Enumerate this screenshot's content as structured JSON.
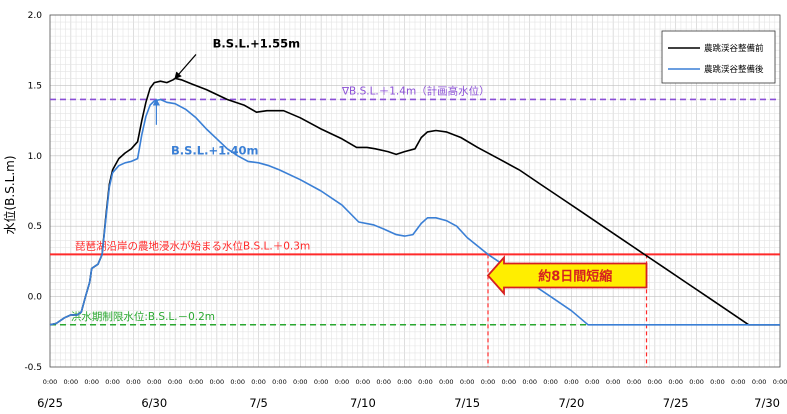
{
  "chart_data": {
    "type": "line",
    "ylabel": "水位(B.S.L.m)",
    "ylim": [
      -0.5,
      2.0
    ],
    "yticks": [
      "-0.5",
      "0.0",
      "0.5",
      "1.0",
      "1.5",
      "2.0"
    ],
    "ytick_values": [
      -0.5,
      0.0,
      0.5,
      1.0,
      1.5,
      2.0
    ],
    "xlim": [
      0,
      35
    ],
    "x_time_label": "0:00",
    "x_time_ticks": 36,
    "x_date_labels": [
      {
        "x": 0,
        "label": "6/25"
      },
      {
        "x": 5,
        "label": "6/30"
      },
      {
        "x": 10,
        "label": "7/5"
      },
      {
        "x": 15,
        "label": "7/10"
      },
      {
        "x": 20,
        "label": "7/15"
      },
      {
        "x": 25,
        "label": "7/20"
      },
      {
        "x": 30,
        "label": "7/25"
      },
      {
        "x": 35,
        "label": "7/30"
      }
    ],
    "legend": {
      "position": "top-right",
      "entries": [
        {
          "name": "農跳渓谷整備前",
          "color": "#000000"
        },
        {
          "name": "農跳渓谷整備後",
          "color": "#3a7fd5"
        }
      ]
    },
    "series": [
      {
        "name": "農跳渓谷整備前",
        "color": "#000000",
        "points": [
          [
            0.0,
            -0.2
          ],
          [
            0.3,
            -0.19
          ],
          [
            0.7,
            -0.15
          ],
          [
            1.0,
            -0.13
          ],
          [
            1.3,
            -0.13
          ],
          [
            1.5,
            -0.11
          ],
          [
            1.7,
            0.0
          ],
          [
            1.9,
            0.1
          ],
          [
            2.0,
            0.2
          ],
          [
            2.3,
            0.23
          ],
          [
            2.5,
            0.3
          ],
          [
            2.7,
            0.6
          ],
          [
            2.85,
            0.8
          ],
          [
            3.0,
            0.9
          ],
          [
            3.3,
            0.98
          ],
          [
            3.6,
            1.02
          ],
          [
            3.9,
            1.05
          ],
          [
            4.2,
            1.1
          ],
          [
            4.4,
            1.25
          ],
          [
            4.6,
            1.38
          ],
          [
            4.8,
            1.48
          ],
          [
            5.0,
            1.52
          ],
          [
            5.3,
            1.53
          ],
          [
            5.6,
            1.52
          ],
          [
            5.9,
            1.54
          ],
          [
            6.0,
            1.55
          ],
          [
            6.3,
            1.54
          ],
          [
            6.8,
            1.51
          ],
          [
            7.5,
            1.47
          ],
          [
            8.5,
            1.4
          ],
          [
            9.3,
            1.36
          ],
          [
            9.9,
            1.31
          ],
          [
            10.4,
            1.32
          ],
          [
            11.2,
            1.32
          ],
          [
            12.0,
            1.27
          ],
          [
            13.0,
            1.19
          ],
          [
            14.0,
            1.12
          ],
          [
            14.7,
            1.06
          ],
          [
            15.2,
            1.06
          ],
          [
            15.6,
            1.05
          ],
          [
            16.2,
            1.03
          ],
          [
            16.6,
            1.01
          ],
          [
            17.0,
            1.03
          ],
          [
            17.5,
            1.05
          ],
          [
            17.8,
            1.13
          ],
          [
            18.1,
            1.17
          ],
          [
            18.5,
            1.18
          ],
          [
            19.0,
            1.17
          ],
          [
            19.7,
            1.13
          ],
          [
            20.5,
            1.06
          ],
          [
            21.5,
            0.98
          ],
          [
            22.5,
            0.9
          ],
          [
            23.5,
            0.8
          ],
          [
            24.5,
            0.7
          ],
          [
            25.5,
            0.6
          ],
          [
            26.5,
            0.5
          ],
          [
            27.5,
            0.4
          ],
          [
            28.5,
            0.3
          ],
          [
            29.5,
            0.2
          ],
          [
            30.5,
            0.1
          ],
          [
            31.5,
            0.0
          ],
          [
            32.5,
            -0.1
          ],
          [
            33.5,
            -0.2
          ],
          [
            35.0,
            -0.2
          ]
        ]
      },
      {
        "name": "農跳渓谷整備後",
        "color": "#3a7fd5",
        "points": [
          [
            0.0,
            -0.2
          ],
          [
            0.3,
            -0.19
          ],
          [
            0.7,
            -0.15
          ],
          [
            1.0,
            -0.13
          ],
          [
            1.3,
            -0.13
          ],
          [
            1.5,
            -0.11
          ],
          [
            1.7,
            0.0
          ],
          [
            1.9,
            0.1
          ],
          [
            2.0,
            0.2
          ],
          [
            2.3,
            0.23
          ],
          [
            2.5,
            0.3
          ],
          [
            2.7,
            0.58
          ],
          [
            2.85,
            0.78
          ],
          [
            3.0,
            0.88
          ],
          [
            3.3,
            0.93
          ],
          [
            3.6,
            0.95
          ],
          [
            3.9,
            0.96
          ],
          [
            4.2,
            0.98
          ],
          [
            4.4,
            1.15
          ],
          [
            4.6,
            1.28
          ],
          [
            4.8,
            1.36
          ],
          [
            5.0,
            1.39
          ],
          [
            5.3,
            1.4
          ],
          [
            5.6,
            1.38
          ],
          [
            6.0,
            1.37
          ],
          [
            6.5,
            1.33
          ],
          [
            7.0,
            1.27
          ],
          [
            7.5,
            1.19
          ],
          [
            8.0,
            1.12
          ],
          [
            8.5,
            1.05
          ],
          [
            9.0,
            1.0
          ],
          [
            9.5,
            0.96
          ],
          [
            10.0,
            0.95
          ],
          [
            10.5,
            0.93
          ],
          [
            11.0,
            0.9
          ],
          [
            12.0,
            0.83
          ],
          [
            13.0,
            0.75
          ],
          [
            14.0,
            0.65
          ],
          [
            14.8,
            0.53
          ],
          [
            15.5,
            0.51
          ],
          [
            16.0,
            0.48
          ],
          [
            16.6,
            0.44
          ],
          [
            17.0,
            0.43
          ],
          [
            17.4,
            0.44
          ],
          [
            17.8,
            0.52
          ],
          [
            18.1,
            0.56
          ],
          [
            18.5,
            0.56
          ],
          [
            19.0,
            0.54
          ],
          [
            19.5,
            0.5
          ],
          [
            20.0,
            0.42
          ],
          [
            21.0,
            0.3
          ],
          [
            22.0,
            0.2
          ],
          [
            23.0,
            0.1
          ],
          [
            24.0,
            0.0
          ],
          [
            25.0,
            -0.1
          ],
          [
            25.8,
            -0.2
          ],
          [
            35.0,
            -0.2
          ]
        ]
      }
    ],
    "reference_lines": [
      {
        "y": 1.4,
        "color": "#8b4fd6",
        "style": "dashed",
        "label": "∇B.S.L.＋1.4m（計画高水位）",
        "label_x": 14.0
      },
      {
        "y": 0.3,
        "color": "#ff2a2a",
        "style": "solid",
        "label": "琵琶湖沿岸の農地浸水が始まる水位B.S.L.＋0.3m",
        "label_x": 1.2
      },
      {
        "y": -0.2,
        "color": "#2aa830",
        "style": "dashed",
        "label": "洪水期制限水位:B.S.L.－0.2m",
        "label_x": 1.0
      }
    ],
    "vertical_markers": [
      {
        "x": 21.0,
        "from": -0.5,
        "to": 0.3,
        "color": "#ff2a2a"
      },
      {
        "x": 28.6,
        "from": -0.5,
        "to": 0.3,
        "color": "#ff2a2a"
      }
    ],
    "annotations": [
      {
        "text": "B.S.L.+1.55m",
        "x": 7.8,
        "y": 1.77,
        "color": "#000000",
        "arrow_to": [
          6.0,
          1.55
        ],
        "arrow_from": [
          7.0,
          1.72
        ]
      },
      {
        "text": "B.S.L.+1.40m",
        "x": 5.8,
        "y": 1.01,
        "color": "#3a7fd5",
        "arrow_to": [
          5.1,
          1.4
        ],
        "arrow_from": [
          5.1,
          1.22
        ]
      }
    ],
    "shortening": {
      "label": "約8日間短縮",
      "x_from": 21.0,
      "x_to": 28.6,
      "y": 0.15
    }
  }
}
